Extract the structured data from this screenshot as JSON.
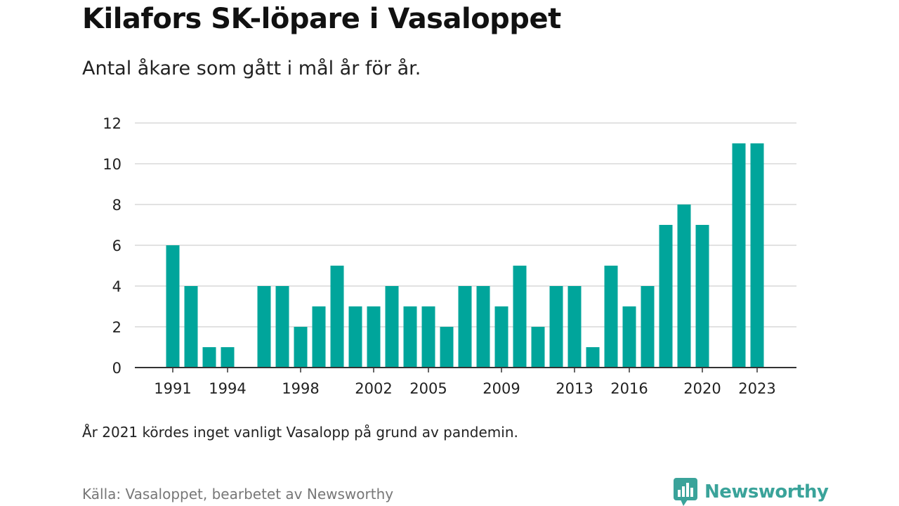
{
  "title": "Kilafors SK-löpare i Vasaloppet",
  "subtitle": "Antal åkare som gått i mål år för år.",
  "note": "År 2021 kördes inget vanligt Vasalopp på grund av pandemin.",
  "source": "Källa: Vasaloppet, bearbetet av Newsworthy",
  "brand": {
    "name": "Newsworthy",
    "color": "#3aa39a"
  },
  "colors": {
    "bar": "#00a59b",
    "grid": "#d9d9d9",
    "axis": "#333333"
  },
  "chart_data": {
    "type": "bar",
    "x": [
      1991,
      1992,
      1993,
      1994,
      1995,
      1996,
      1997,
      1998,
      1999,
      2000,
      2001,
      2002,
      2003,
      2004,
      2005,
      2006,
      2007,
      2008,
      2009,
      2010,
      2011,
      2012,
      2013,
      2014,
      2015,
      2016,
      2017,
      2018,
      2019,
      2020,
      2021,
      2022,
      2023
    ],
    "values": [
      6,
      4,
      1,
      1,
      0,
      4,
      4,
      2,
      3,
      5,
      3,
      3,
      4,
      3,
      3,
      2,
      4,
      4,
      3,
      5,
      2,
      4,
      4,
      1,
      5,
      3,
      4,
      7,
      8,
      7,
      0,
      11,
      11
    ],
    "x_ticks": [
      1991,
      1994,
      1998,
      2002,
      2005,
      2009,
      2013,
      2016,
      2020,
      2023
    ],
    "y_ticks": [
      0,
      2,
      4,
      6,
      8,
      10,
      12
    ],
    "ylim": [
      0,
      12
    ],
    "xlabel": "",
    "ylabel": "",
    "grid": true
  }
}
